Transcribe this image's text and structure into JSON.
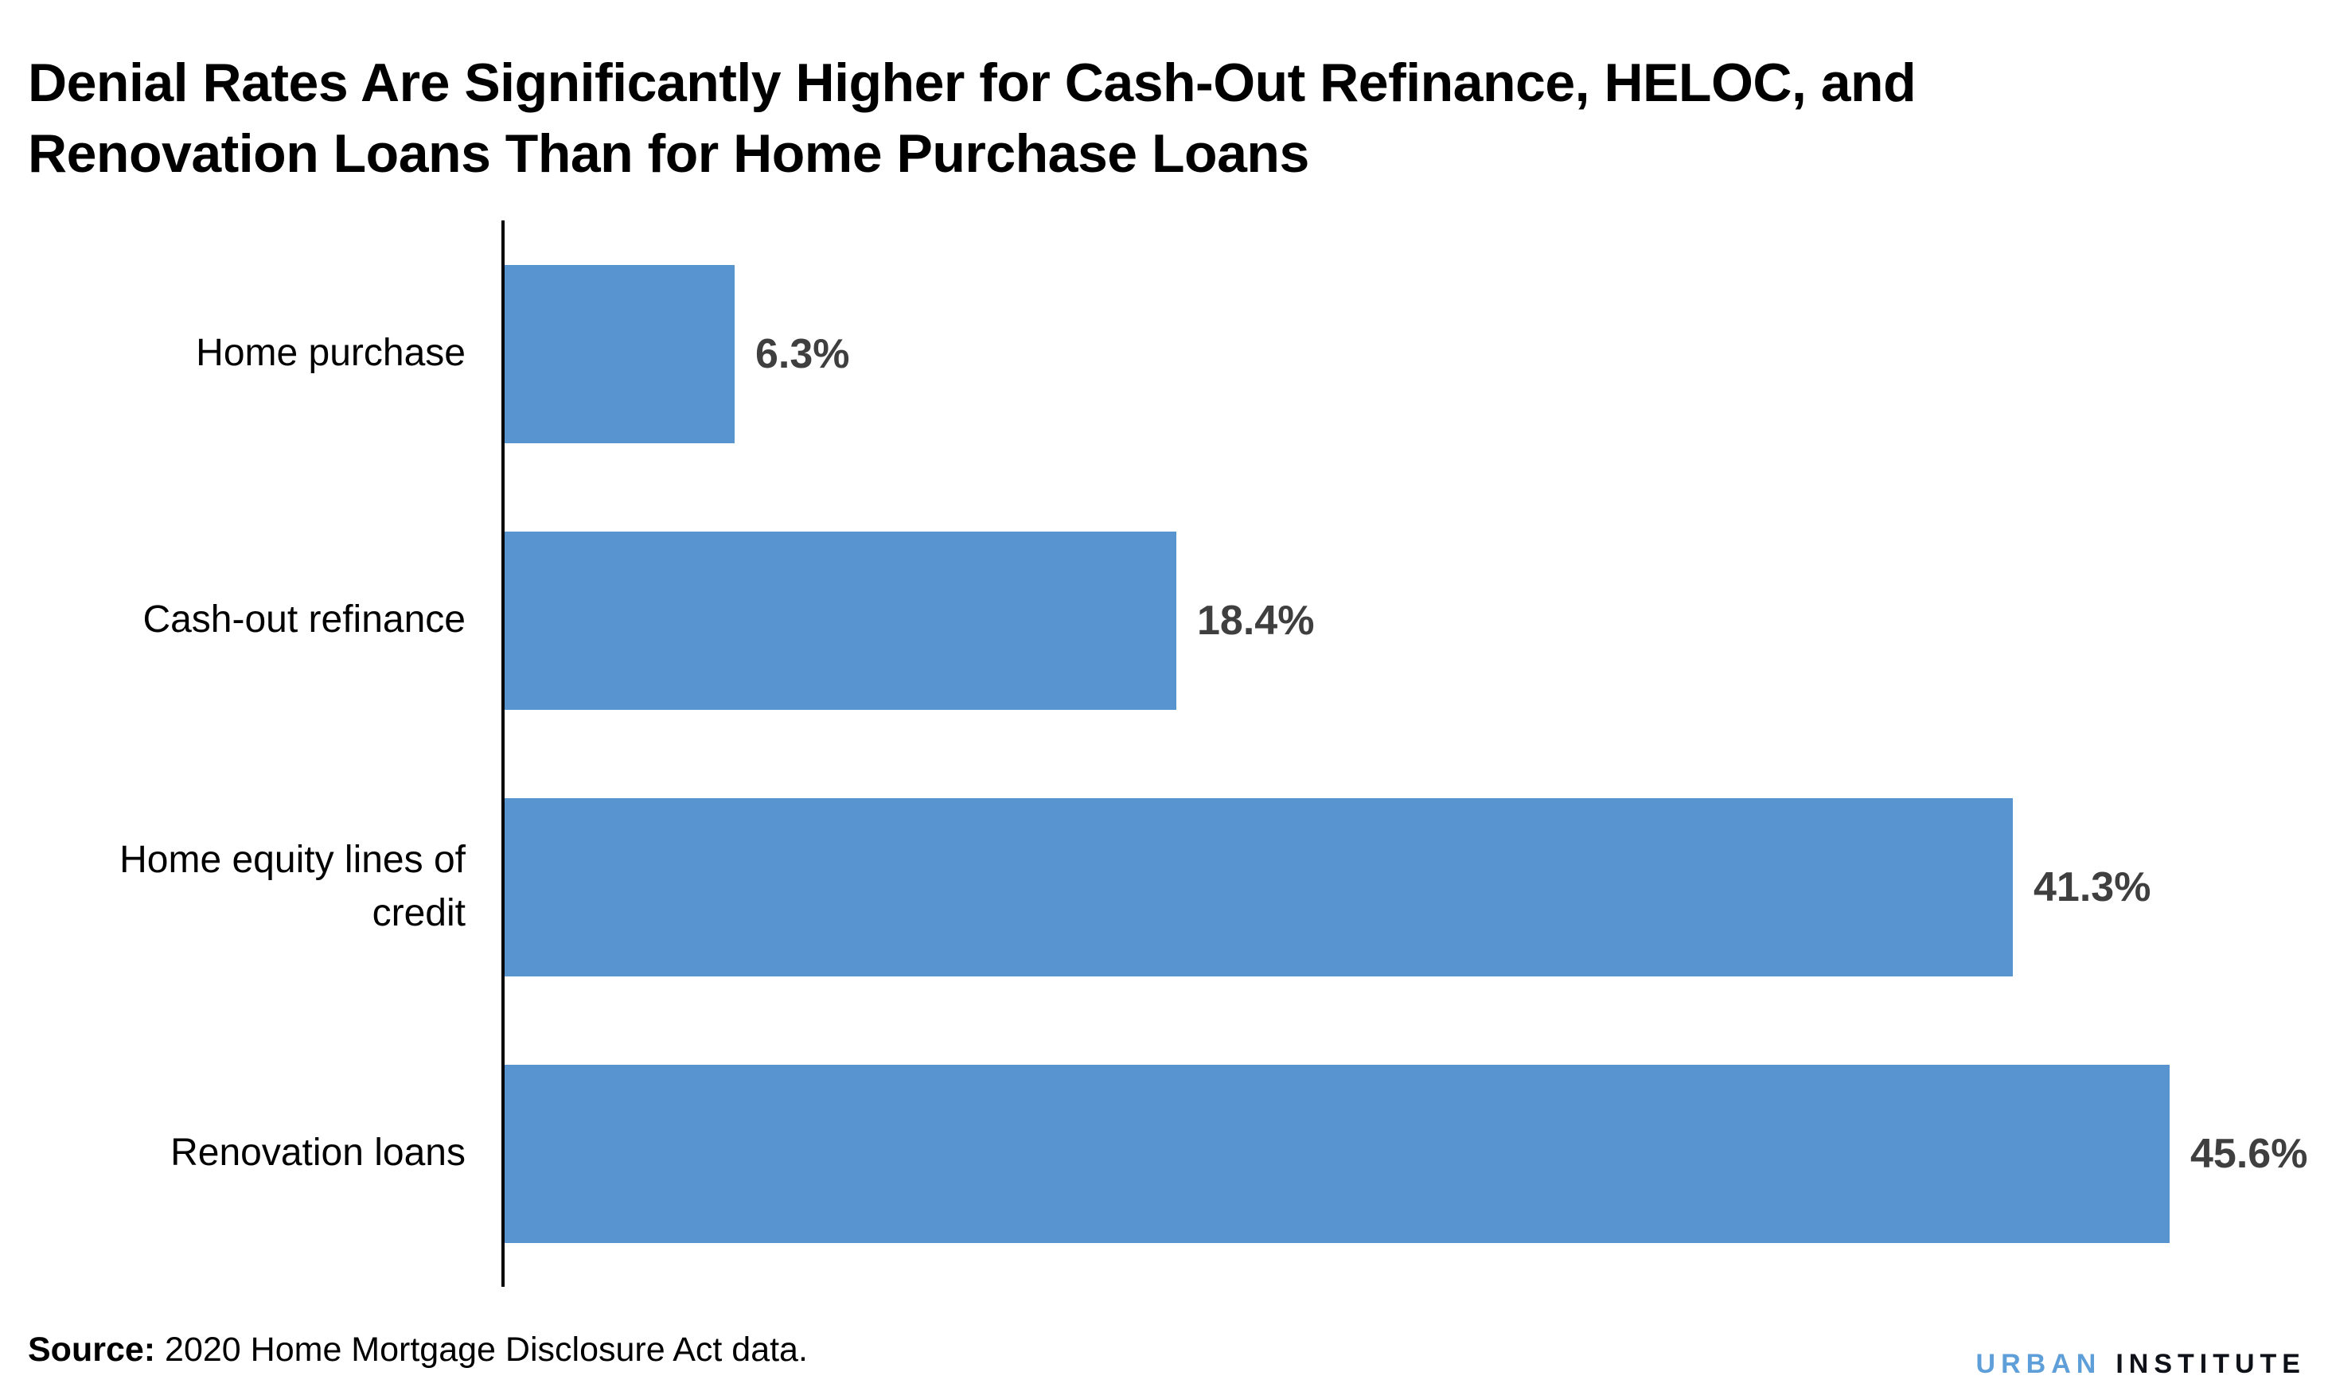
{
  "title_lines": [
    "Denial Rates Are Significantly Higher for Cash-Out Refinance, HELOC, and",
    "Renovation Loans Than for Home Purchase Loans"
  ],
  "source": {
    "label": "Source:",
    "text": " 2020 Home Mortgage Disclosure Act data."
  },
  "logo": {
    "part1": "URBAN",
    "part2": "INSTITUTE"
  },
  "colors": {
    "bar": "#5894D0",
    "value_label": "#3f3f3f",
    "axis": "#000000",
    "logo_blue": "#5F9FD9",
    "logo_black": "#0f1118"
  },
  "chart_data": {
    "type": "bar",
    "orientation": "horizontal",
    "title": "Denial Rates Are Significantly Higher for Cash-Out Refinance, HELOC, and Renovation Loans Than for Home Purchase Loans",
    "categories": [
      "Home purchase",
      "Cash-out refinance",
      "Home equity lines of credit",
      "Renovation loans"
    ],
    "values": [
      6.3,
      18.4,
      41.3,
      45.6
    ],
    "value_labels": [
      "6.3%",
      "18.4%",
      "41.3%",
      "45.6%"
    ],
    "xlabel": "",
    "ylabel": "",
    "xlim": [
      0,
      50
    ],
    "grid": false,
    "legend": false,
    "bar_color": "#5894D0",
    "source_note": "Source: 2020 Home Mortgage Disclosure Act data."
  }
}
